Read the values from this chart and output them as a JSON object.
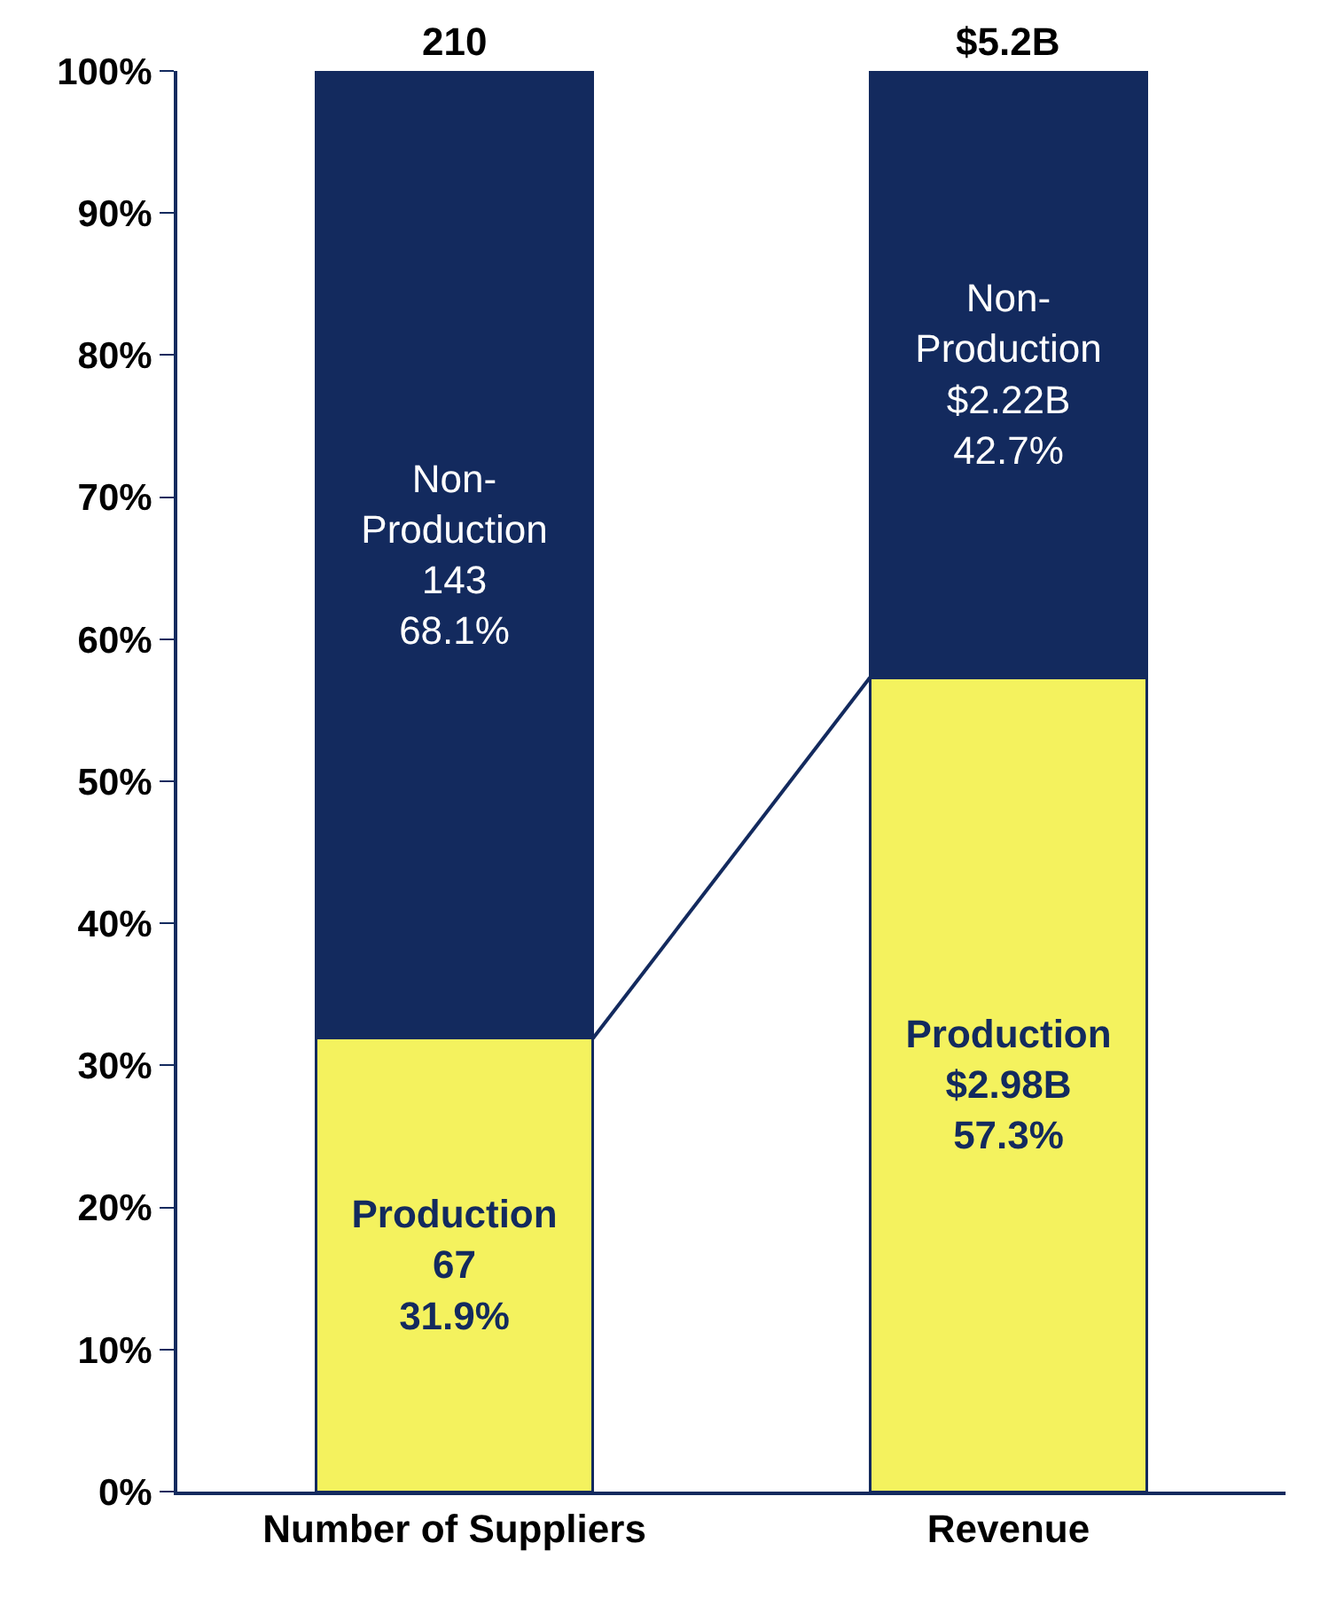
{
  "chart_data": {
    "type": "bar",
    "stacked": true,
    "categories": [
      "Number of Suppliers",
      "Revenue"
    ],
    "series": [
      {
        "color": "#f4f25e",
        "values": [
          31.9,
          57.3
        ],
        "value_labels": [
          "Production\n67\n31.9%",
          "Production\n$2.98B\n57.3%"
        ]
      },
      {
        "color": "#132a5e",
        "values": [
          68.1,
          42.7
        ],
        "value_labels": [
          "Non-\nProduction\n143\n68.1%",
          "Non-\nProduction\n$2.22B\n42.7%"
        ]
      }
    ],
    "annotations": [
      {
        "text": "210",
        "x": "Number of Suppliers",
        "y": 100
      },
      {
        "text": "$5.2B",
        "x": "Revenue",
        "y": 100
      }
    ],
    "ylim": [
      0,
      100
    ],
    "yticks": [
      {
        "value": 0,
        "label": "0%"
      },
      {
        "value": 10,
        "label": "10%"
      },
      {
        "value": 20,
        "label": "20%"
      },
      {
        "value": 30,
        "label": "30%"
      },
      {
        "value": 40,
        "label": "40%"
      },
      {
        "value": 50,
        "label": "50%"
      },
      {
        "value": 60,
        "label": "60%"
      },
      {
        "value": 70,
        "label": "70%"
      },
      {
        "value": 80,
        "label": "80%"
      },
      {
        "value": 90,
        "label": "90%"
      },
      {
        "value": 100,
        "label": "100%"
      }
    ],
    "grid": false,
    "legend": false
  }
}
